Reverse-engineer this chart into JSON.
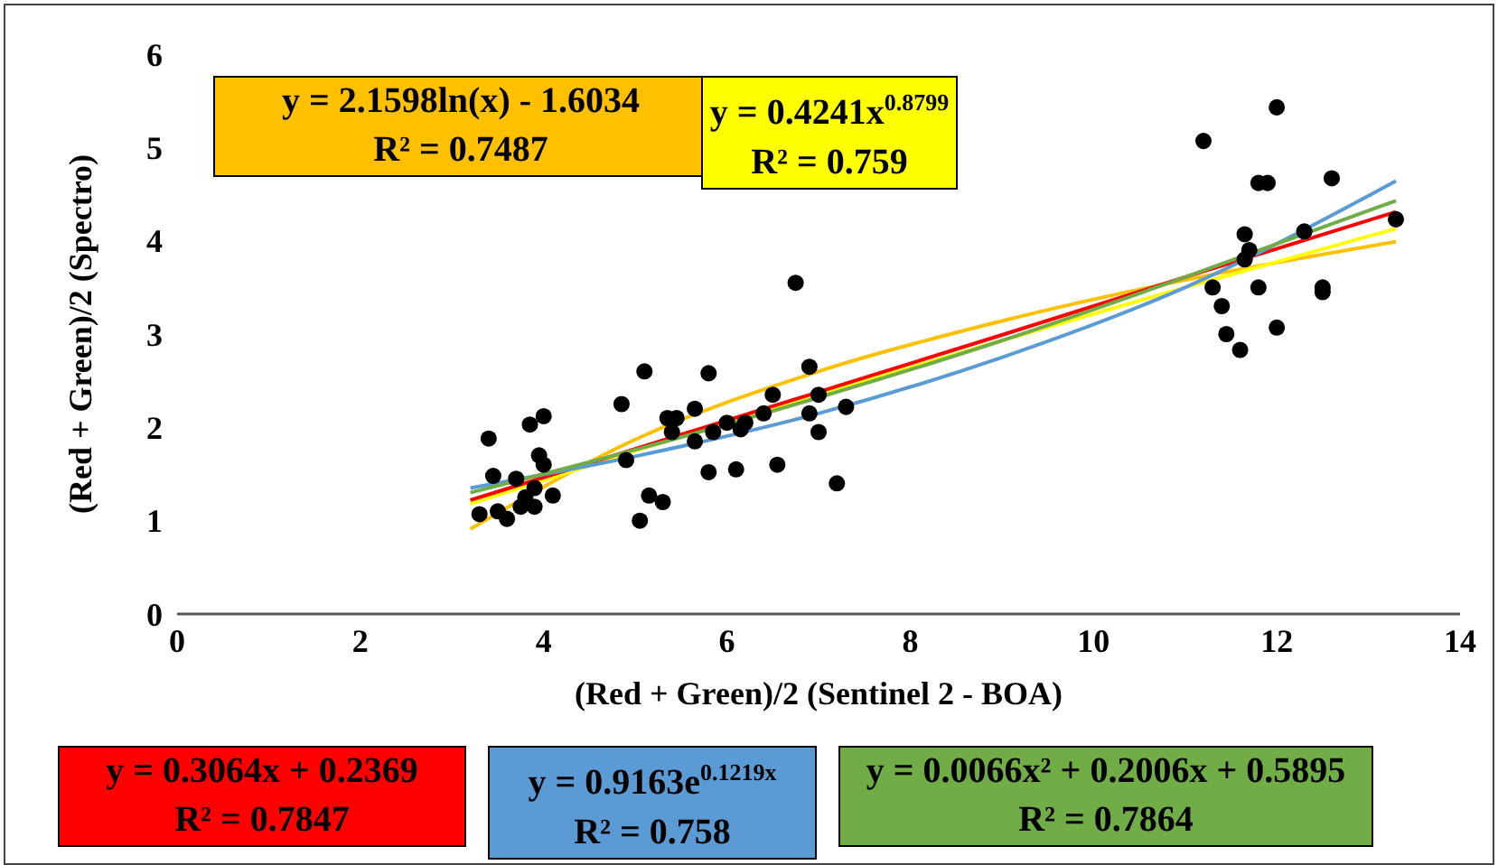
{
  "chart_data": {
    "type": "scatter",
    "xlabel": "(Red + Green)/2 (Sentinel 2 - BOA)",
    "ylabel": "(Red + Green)/2  (Spectro)",
    "xlim": [
      0,
      14
    ],
    "xticks": [
      0,
      2,
      4,
      6,
      8,
      10,
      12,
      14
    ],
    "ylim": [
      0,
      6
    ],
    "yticks": [
      0,
      1,
      2,
      3,
      4,
      5,
      6
    ],
    "series": [
      {
        "marker": "circle",
        "color": "#000000",
        "x": [
          3.3,
          3.4,
          3.45,
          3.5,
          3.6,
          3.7,
          3.75,
          3.8,
          3.85,
          3.9,
          3.9,
          3.95,
          4.0,
          4.0,
          4.1,
          4.85,
          4.9,
          5.05,
          5.1,
          5.15,
          5.3,
          5.35,
          5.4,
          5.45,
          5.65,
          5.65,
          5.8,
          5.8,
          5.85,
          6.0,
          6.1,
          6.15,
          6.2,
          6.4,
          6.5,
          6.55,
          6.75,
          6.9,
          6.9,
          7.0,
          7.0,
          7.2,
          7.3,
          11.2,
          11.3,
          11.4,
          11.45,
          11.6,
          11.65,
          11.65,
          11.7,
          11.8,
          11.8,
          11.9,
          12.0,
          12.0,
          12.3,
          12.5,
          12.5,
          12.6,
          13.3
        ],
        "values": [
          1.07,
          1.88,
          1.48,
          1.1,
          1.02,
          1.45,
          1.15,
          1.25,
          2.03,
          1.15,
          1.35,
          1.7,
          1.6,
          2.12,
          1.27,
          2.25,
          1.65,
          1.0,
          2.6,
          1.27,
          1.2,
          2.1,
          1.95,
          2.1,
          2.2,
          1.85,
          2.58,
          1.52,
          1.95,
          2.05,
          1.55,
          1.98,
          2.05,
          2.15,
          2.35,
          1.6,
          3.55,
          2.65,
          2.15,
          1.95,
          2.35,
          1.4,
          2.22,
          5.07,
          3.5,
          3.3,
          3.0,
          2.83,
          4.07,
          3.8,
          3.9,
          3.5,
          4.62,
          4.62,
          5.43,
          3.07,
          4.1,
          3.45,
          3.5,
          4.67,
          4.23
        ]
      },
      {
        "type": "line",
        "name": "y = 2.1598ln(x) - 1.6034",
        "color": "#ffc000",
        "x": [
          3.2,
          5,
          7,
          9,
          11,
          13.3
        ],
        "values": [
          0.91,
          1.87,
          2.6,
          3.14,
          3.58,
          3.99
        ]
      },
      {
        "type": "line",
        "name": "y = 0.4241x$^{0.8799}$",
        "color": "#ffff00",
        "x": [
          3.2,
          5,
          7,
          9,
          11,
          13.3
        ],
        "values": [
          1.18,
          1.75,
          2.35,
          2.93,
          3.5,
          4.13
        ]
      },
      {
        "type": "line",
        "name": "y = 0.3064x + 0.2369",
        "color": "#ff0000",
        "x": [
          3.2,
          5,
          7,
          9,
          11,
          13.3
        ],
        "values": [
          1.22,
          1.77,
          2.38,
          2.99,
          3.61,
          4.31
        ]
      },
      {
        "type": "line",
        "name": "y = 0.9163e$^{0.1219x}$",
        "color": "#5b9bd5",
        "x": [
          3.2,
          5,
          7,
          9,
          11,
          13.3
        ],
        "values": [
          1.35,
          1.69,
          2.15,
          2.75,
          3.5,
          4.64
        ]
      },
      {
        "type": "line",
        "name": "y = 0.0066x² + 0.2006x + 0.5895",
        "color": "#70ad47",
        "x": [
          3.2,
          5,
          7,
          9,
          11,
          13.3
        ],
        "values": [
          1.3,
          1.76,
          2.32,
          2.93,
          3.61,
          4.43
        ]
      }
    ],
    "annotations": [
      "R² = 0.7487",
      "R² = 0.759",
      "R² = 0.7847",
      "R² = 0.758",
      "R² = 0.7864"
    ]
  }
}
